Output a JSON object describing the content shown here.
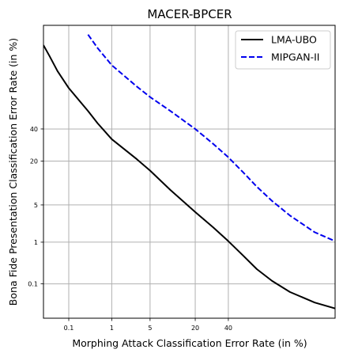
{
  "chart_data": {
    "type": "line",
    "title": "MACER-BPCER",
    "xlabel": "Morphing Attack Classification Error Rate (in %)",
    "ylabel": "Bona Fide Presentation Classification Error Rate (in %)",
    "axis_scale": "probit (normal deviate)",
    "xlim": [
      0.02,
      95
    ],
    "ylim": [
      0.01,
      95
    ],
    "x_ticks": [
      0.1,
      1,
      5,
      20,
      40
    ],
    "y_ticks": [
      0.1,
      1,
      5,
      20,
      40
    ],
    "grid": true,
    "legend_position": "top-right",
    "series": [
      {
        "name": "LMA-UBO",
        "color": "#000000",
        "line_style": "solid",
        "x": [
          0.02,
          0.03,
          0.05,
          0.1,
          0.3,
          0.5,
          1,
          3,
          5,
          10,
          20,
          30,
          40,
          50,
          60,
          70,
          80,
          90,
          95
        ],
        "y": [
          90,
          86,
          79,
          69,
          53,
          44,
          33,
          21,
          15.5,
          8.5,
          3.8,
          2.0,
          1.05,
          0.52,
          0.24,
          0.12,
          0.06,
          0.03,
          0.02
        ]
      },
      {
        "name": "MIPGAN-II",
        "color": "#0000ee",
        "line_style": "dashed",
        "x": [
          0.3,
          0.5,
          1,
          3,
          5,
          10,
          20,
          30,
          40,
          50,
          60,
          70,
          80,
          90,
          95
        ],
        "y": [
          93,
          89,
          82,
          70,
          63,
          53,
          40,
          30,
          22,
          15,
          9.5,
          5.8,
          3.3,
          1.6,
          1.05
        ]
      }
    ]
  }
}
